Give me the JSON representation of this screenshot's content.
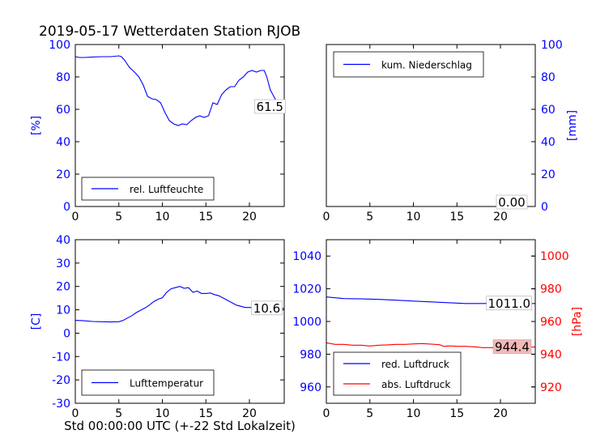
{
  "figure": {
    "title": "2019-05-17 Wetterdaten Station RJOB",
    "xlabel": "Std 00:00:00 UTC (+-22 Std Lokalzeit)"
  },
  "colors": {
    "blue": "#0000ff",
    "red": "#ff0000",
    "pressure_label_bg": "#f4b8b8"
  },
  "chart_data": [
    {
      "id": "humidity",
      "type": "line",
      "title": "",
      "xlabel": "",
      "ylabel": "[%]",
      "xlim": [
        0,
        24
      ],
      "ylim": [
        0,
        100
      ],
      "xticks": [
        0,
        5,
        10,
        15,
        20
      ],
      "yticks": [
        0,
        20,
        40,
        60,
        80,
        100
      ],
      "grid": false,
      "legend_placement": "lower-left",
      "current_value_label": "61.5",
      "series": [
        {
          "name": "rel. Luftfeuchte",
          "color": "#0000ff",
          "points": [
            [
              0,
              92.5
            ],
            [
              0.5,
              92
            ],
            [
              1,
              92
            ],
            [
              2,
              92.3
            ],
            [
              3,
              92.5
            ],
            [
              4,
              92.5
            ],
            [
              5,
              93
            ],
            [
              5.3,
              92.5
            ],
            [
              5.7,
              90
            ],
            [
              6.2,
              86
            ],
            [
              6.8,
              83
            ],
            [
              7.3,
              80
            ],
            [
              7.8,
              75
            ],
            [
              8.3,
              68
            ],
            [
              8.8,
              66.5
            ],
            [
              9.3,
              66
            ],
            [
              9.8,
              64
            ],
            [
              10.3,
              58
            ],
            [
              10.8,
              53
            ],
            [
              11.3,
              51
            ],
            [
              11.8,
              50
            ],
            [
              12.3,
              51
            ],
            [
              12.8,
              50.5
            ],
            [
              13.3,
              53
            ],
            [
              13.8,
              55
            ],
            [
              14.3,
              56
            ],
            [
              14.8,
              55
            ],
            [
              15.3,
              56
            ],
            [
              15.8,
              64
            ],
            [
              16.3,
              63
            ],
            [
              16.8,
              69
            ],
            [
              17.3,
              72
            ],
            [
              17.8,
              74
            ],
            [
              18.3,
              74
            ],
            [
              18.8,
              78
            ],
            [
              19.3,
              80
            ],
            [
              19.8,
              83
            ],
            [
              20.3,
              84
            ],
            [
              20.8,
              83
            ],
            [
              21.3,
              84
            ],
            [
              21.7,
              84
            ],
            [
              22,
              80
            ],
            [
              22.4,
              72
            ],
            [
              22.8,
              68
            ],
            [
              23.2,
              64
            ],
            [
              23.5,
              60
            ],
            [
              23.8,
              61.5
            ]
          ]
        }
      ]
    },
    {
      "id": "precipitation",
      "type": "line",
      "title": "",
      "xlabel": "",
      "ylabel": "[mm]",
      "xlim": [
        0,
        24
      ],
      "ylim": [
        0,
        100
      ],
      "xticks": [
        0,
        5,
        10,
        15,
        20
      ],
      "yticks": [
        0,
        20,
        40,
        60,
        80,
        100
      ],
      "grid": false,
      "legend_placement": "upper-left",
      "current_value_label": "0.00",
      "series": [
        {
          "name": "kum. Niederschlag",
          "color": "#0000ff",
          "points": [
            [
              0,
              0
            ],
            [
              6,
              0
            ],
            [
              12,
              0
            ],
            [
              18,
              0
            ],
            [
              24,
              0
            ]
          ]
        }
      ]
    },
    {
      "id": "temperature",
      "type": "line",
      "title": "",
      "xlabel": "",
      "ylabel": "[C]",
      "xlim": [
        0,
        24
      ],
      "ylim": [
        -30,
        40
      ],
      "xticks": [
        0,
        5,
        10,
        15,
        20
      ],
      "yticks": [
        -30,
        -20,
        -10,
        0,
        10,
        20,
        30,
        40
      ],
      "grid": false,
      "legend_placement": "lower-left",
      "current_value_label": "10.6",
      "series": [
        {
          "name": "Lufttemperatur",
          "color": "#0000ff",
          "points": [
            [
              0,
              5.5
            ],
            [
              1,
              5.3
            ],
            [
              2,
              5
            ],
            [
              3,
              4.9
            ],
            [
              4,
              4.8
            ],
            [
              5,
              4.9
            ],
            [
              5.5,
              5.5
            ],
            [
              6,
              6.5
            ],
            [
              6.5,
              7.5
            ],
            [
              7,
              8.8
            ],
            [
              7.5,
              9.8
            ],
            [
              8,
              10.8
            ],
            [
              8.5,
              12
            ],
            [
              9,
              13.5
            ],
            [
              9.5,
              14.5
            ],
            [
              10,
              15.2
            ],
            [
              10.5,
              17.5
            ],
            [
              11,
              19
            ],
            [
              11.5,
              19.5
            ],
            [
              12,
              20
            ],
            [
              12.5,
              19.2
            ],
            [
              13,
              19.5
            ],
            [
              13.5,
              17.5
            ],
            [
              14,
              18
            ],
            [
              14.5,
              17
            ],
            [
              15,
              17
            ],
            [
              15.5,
              17.2
            ],
            [
              16,
              16.5
            ],
            [
              16.5,
              16
            ],
            [
              17,
              15
            ],
            [
              17.5,
              14
            ],
            [
              18,
              13
            ],
            [
              18.5,
              12
            ],
            [
              19,
              11.5
            ],
            [
              19.5,
              11
            ],
            [
              20,
              11
            ],
            [
              21,
              10.8
            ],
            [
              22,
              10.6
            ],
            [
              23,
              10.5
            ],
            [
              24,
              10.6
            ]
          ]
        }
      ]
    },
    {
      "id": "pressure",
      "type": "line",
      "title": "",
      "xlabel": "",
      "ylabel": "[hPa]",
      "xlim": [
        0,
        24
      ],
      "ylim": [
        950,
        1050
      ],
      "yticks": [
        960,
        980,
        1000,
        1020,
        1040
      ],
      "ylim_right": [
        910,
        1010
      ],
      "yticks_right": [
        920,
        940,
        960,
        980,
        1000
      ],
      "xticks": [
        0,
        5,
        10,
        15,
        20
      ],
      "grid": false,
      "legend_placement": "lower-left",
      "series": [
        {
          "name": "red. Luftdruck",
          "color": "#0000ff",
          "axis": "left",
          "current_value_label": "1011.0",
          "points": [
            [
              0,
              1015
            ],
            [
              1,
              1014.5
            ],
            [
              2,
              1014
            ],
            [
              4,
              1013.8
            ],
            [
              6,
              1013.5
            ],
            [
              8,
              1013
            ],
            [
              10,
              1012.5
            ],
            [
              12,
              1012
            ],
            [
              14,
              1011.5
            ],
            [
              16,
              1011
            ],
            [
              18,
              1011
            ],
            [
              20,
              1011.2
            ],
            [
              22,
              1011
            ],
            [
              24,
              1011
            ]
          ]
        },
        {
          "name": "abs. Luftdruck",
          "color": "#ff0000",
          "axis": "right",
          "current_value_label": "944.4",
          "points": [
            [
              0,
              947
            ],
            [
              1,
              946
            ],
            [
              2,
              946
            ],
            [
              3,
              945.5
            ],
            [
              4,
              945.5
            ],
            [
              5,
              945
            ],
            [
              6,
              945.5
            ],
            [
              7,
              945.7
            ],
            [
              8,
              946
            ],
            [
              9,
              946
            ],
            [
              10,
              946.3
            ],
            [
              11,
              946.5
            ],
            [
              12,
              946.2
            ],
            [
              13,
              945.8
            ],
            [
              13.5,
              944.8
            ],
            [
              14,
              945
            ],
            [
              14.5,
              945
            ],
            [
              15,
              944.8
            ],
            [
              16,
              944.8
            ],
            [
              17,
              944.5
            ],
            [
              18,
              944
            ],
            [
              19,
              944
            ],
            [
              20,
              944.2
            ],
            [
              21,
              944.4
            ],
            [
              22,
              944.4
            ],
            [
              24,
              944.4
            ]
          ]
        }
      ]
    }
  ]
}
